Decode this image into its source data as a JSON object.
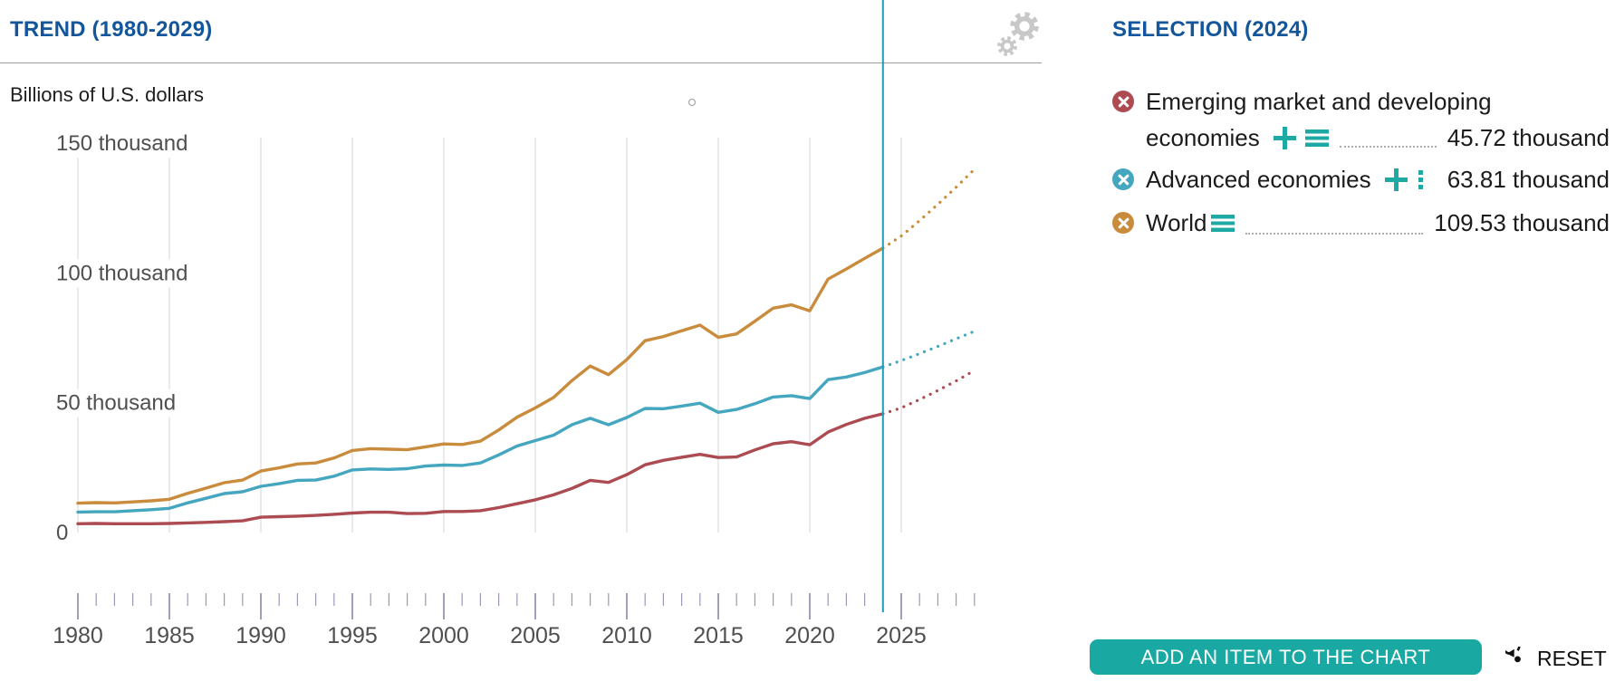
{
  "header": {
    "trend_title": "TREND (1980-2029)",
    "subtitle": "Billions of U.S. dollars"
  },
  "selection": {
    "title": "SELECTION (2024)",
    "items": [
      {
        "label": "Emerging market and developing economies",
        "label_line1": "Emerging market and developing",
        "label_line2": "economies",
        "value": "45.72 thousand",
        "color": "#ad4b52",
        "icons": [
          "plus",
          "hamburger"
        ]
      },
      {
        "label": "Advanced economies",
        "value": "63.81 thousand",
        "color": "#45a6c0",
        "icons": [
          "plus",
          "kebab"
        ]
      },
      {
        "label": "World",
        "value": "109.53 thousand",
        "color": "#c98b3c",
        "icons": [
          "hamburger"
        ]
      }
    ]
  },
  "footer": {
    "add_button_label": "ADD AN ITEM TO THE CHART",
    "reset_label": "RESET"
  },
  "icons": {
    "settings": "double-gear",
    "reset": "circular-arrow-with-dot",
    "remove_series": "colored-circle-with-white-x",
    "add_series": "teal-plus",
    "reorder": "teal-hamburger",
    "more": "teal-vertical-dots"
  },
  "colors": {
    "title_blue": "#14569b",
    "accent_teal": "#19a8a2",
    "marker_line": "#1d9db8",
    "gridline": "#dcdcdc",
    "axis_text": "#4f4f4f",
    "ruler_tick": "#8d8daf"
  },
  "chart_data": {
    "type": "line",
    "title": "TREND (1980-2029)",
    "ylabel": "Billions of U.S. dollars",
    "units": "thousands of billions of U.S. dollars",
    "x_start": 1980,
    "x_end": 2029,
    "projection_start": 2024,
    "selected_year": 2024,
    "ylim": [
      0,
      155
    ],
    "grid": "vertical-only",
    "x_tick_step_major": 5,
    "x_axis_labels": [
      "1980",
      "1985",
      "1990",
      "1995",
      "2000",
      "2005",
      "2010",
      "2015",
      "2020",
      "2025"
    ],
    "y_ticks": [
      {
        "value": 0,
        "label": "0"
      },
      {
        "value": 50,
        "label": "50 thousand"
      },
      {
        "value": 100,
        "label": "100 thousand"
      },
      {
        "value": 150,
        "label": "150 thousand"
      }
    ],
    "series": [
      {
        "name": "World",
        "color": "#c98b3c",
        "selected_value": 109.53,
        "values": [
          11.3,
          11.5,
          11.4,
          11.8,
          12.2,
          12.8,
          15.1,
          17.1,
          19.2,
          20.2,
          23.7,
          24.9,
          26.4,
          26.8,
          28.7,
          31.6,
          32.3,
          32.1,
          31.9,
          33.0,
          34.1,
          33.9,
          35.2,
          39.5,
          44.4,
          48.0,
          52.0,
          58.5,
          64.1,
          60.8,
          66.6,
          73.9,
          75.5,
          77.7,
          79.9,
          75.2,
          76.5,
          81.4,
          86.4,
          87.7,
          85.4,
          97.6,
          101.5,
          105.6,
          109.53,
          114.2,
          120.1,
          126.4,
          133.0,
          139.9
        ]
      },
      {
        "name": "Advanced economies",
        "color": "#45a6c0",
        "selected_value": 63.81,
        "values": [
          7.9,
          8.0,
          8.0,
          8.4,
          8.8,
          9.3,
          11.4,
          13.2,
          15.0,
          15.7,
          17.8,
          18.8,
          20.1,
          20.2,
          21.7,
          24.1,
          24.5,
          24.3,
          24.6,
          25.6,
          26.0,
          25.8,
          26.8,
          29.9,
          33.3,
          35.4,
          37.5,
          41.5,
          44.0,
          41.5,
          44.3,
          47.8,
          47.7,
          48.7,
          49.8,
          46.3,
          47.4,
          49.6,
          52.2,
          52.7,
          51.6,
          58.9,
          59.9,
          61.6,
          63.81,
          66.2,
          68.9,
          71.7,
          74.6,
          77.5
        ]
      },
      {
        "name": "Emerging market and developing economies",
        "color": "#ad4b52",
        "selected_value": 45.72,
        "values": [
          3.4,
          3.5,
          3.4,
          3.4,
          3.4,
          3.5,
          3.7,
          3.9,
          4.2,
          4.5,
          5.9,
          6.1,
          6.3,
          6.6,
          7.0,
          7.5,
          7.8,
          7.8,
          7.3,
          7.4,
          8.1,
          8.1,
          8.4,
          9.6,
          11.1,
          12.6,
          14.5,
          17.0,
          20.1,
          19.3,
          22.3,
          26.1,
          27.8,
          29.0,
          30.1,
          28.9,
          29.1,
          31.8,
          34.2,
          35.0,
          33.8,
          38.7,
          41.6,
          44.0,
          45.72,
          48.0,
          51.2,
          54.7,
          58.4,
          62.4
        ]
      }
    ]
  }
}
